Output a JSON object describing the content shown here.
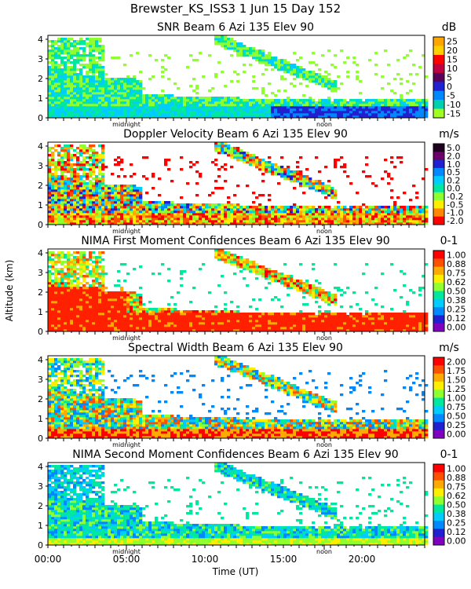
{
  "header": {
    "title": "Brewster_KS_ISS3    1 Jun 15 Day 152"
  },
  "shared_axes": {
    "x_label": "Time (UT)",
    "y_label": "Altitude (km)",
    "x_range": [
      0,
      24
    ],
    "x_ticks": [
      0,
      5,
      10,
      15,
      20
    ],
    "x_tick_labels": [
      "00:00",
      "05:00",
      "10:00",
      "15:00",
      "20:00"
    ],
    "y_range": [
      0,
      4.2
    ],
    "y_ticks": [
      0,
      1,
      2,
      3,
      4
    ],
    "y_tick_labels": [
      "0",
      "1",
      "2",
      "3",
      "4"
    ],
    "markers": [
      {
        "label": "midnight",
        "time": 5.0
      },
      {
        "label": "noon",
        "time": 17.6
      }
    ]
  },
  "colors": {
    "palette": [
      "#7f00bf",
      "#2020d0",
      "#0088ff",
      "#00ccff",
      "#00e8a0",
      "#90ff30",
      "#ffee00",
      "#ffaa00",
      "#ff5000",
      "#ff0000",
      "#c00000",
      "#200020"
    ]
  },
  "chart_data": [
    {
      "type": "heatmap",
      "title": "SNR Beam 6 Azi 135 Elev 90",
      "unit": "dB",
      "xlabel": "",
      "ylabel": "",
      "colorbar_labels": [
        "25",
        "20",
        "15",
        "10",
        "5",
        "0",
        "-5",
        "-10",
        "-15"
      ],
      "colorbar_colors": [
        "#ffa500",
        "#ffd000",
        "#ff0000",
        "#c00040",
        "#5a005a",
        "#2020d0",
        "#0088ff",
        "#00d0b0",
        "#a0ff20"
      ],
      "field": "snr"
    },
    {
      "type": "heatmap",
      "title": "Doppler Velocity Beam 6 Azi 135 Elev 90",
      "unit": "m/s",
      "xlabel": "",
      "ylabel": "",
      "colorbar_labels": [
        "5.0",
        "2.0",
        "1.0",
        "0.5",
        "0.2",
        "0.0",
        "-0.2",
        "-0.5",
        "-1.0",
        "-2.0"
      ],
      "colorbar_colors": [
        "#200020",
        "#6a006a",
        "#2020d0",
        "#0088ff",
        "#00ccff",
        "#00e8a0",
        "#90ff30",
        "#ffee00",
        "#ff8800",
        "#ff0000"
      ],
      "field": "vel"
    },
    {
      "type": "heatmap",
      "title": "NIMA First Moment Confidences Beam 6 Azi 135 Elev 90",
      "unit": "0-1",
      "xlabel": "",
      "ylabel": "",
      "colorbar_labels": [
        "1.00",
        "0.88",
        "0.75",
        "0.62",
        "0.50",
        "0.38",
        "0.25",
        "0.12",
        "0.00"
      ],
      "colorbar_colors": [
        "#ff0000",
        "#ff5000",
        "#ffaa00",
        "#ffee00",
        "#90ff30",
        "#00e8a0",
        "#00ccff",
        "#0088ff",
        "#2020d0",
        "#7f00bf"
      ],
      "field": "conf1"
    },
    {
      "type": "heatmap",
      "title": "Spectral Width Beam 6 Azi 135 Elev 90",
      "unit": "m/s",
      "xlabel": "",
      "ylabel": "",
      "colorbar_labels": [
        "2.00",
        "1.75",
        "1.50",
        "1.25",
        "1.00",
        "0.75",
        "0.50",
        "0.25",
        "0.00"
      ],
      "colorbar_colors": [
        "#ff0000",
        "#ff5000",
        "#ffaa00",
        "#ffee00",
        "#90ff30",
        "#00e8a0",
        "#00ccff",
        "#0088ff",
        "#2020d0",
        "#7f00bf"
      ],
      "field": "width"
    },
    {
      "type": "heatmap",
      "title": "NIMA Second Moment Confidences Beam 6 Azi 135 Elev 90",
      "unit": "0-1",
      "xlabel": "Time (UT)",
      "ylabel": "",
      "colorbar_labels": [
        "1.00",
        "0.88",
        "0.75",
        "0.62",
        "0.50",
        "0.38",
        "0.25",
        "0.12",
        "0.00"
      ],
      "colorbar_colors": [
        "#ff0000",
        "#ff5000",
        "#ffaa00",
        "#ffee00",
        "#90ff30",
        "#00e8a0",
        "#00ccff",
        "#0088ff",
        "#2020d0",
        "#7f00bf"
      ],
      "field": "conf2"
    }
  ]
}
